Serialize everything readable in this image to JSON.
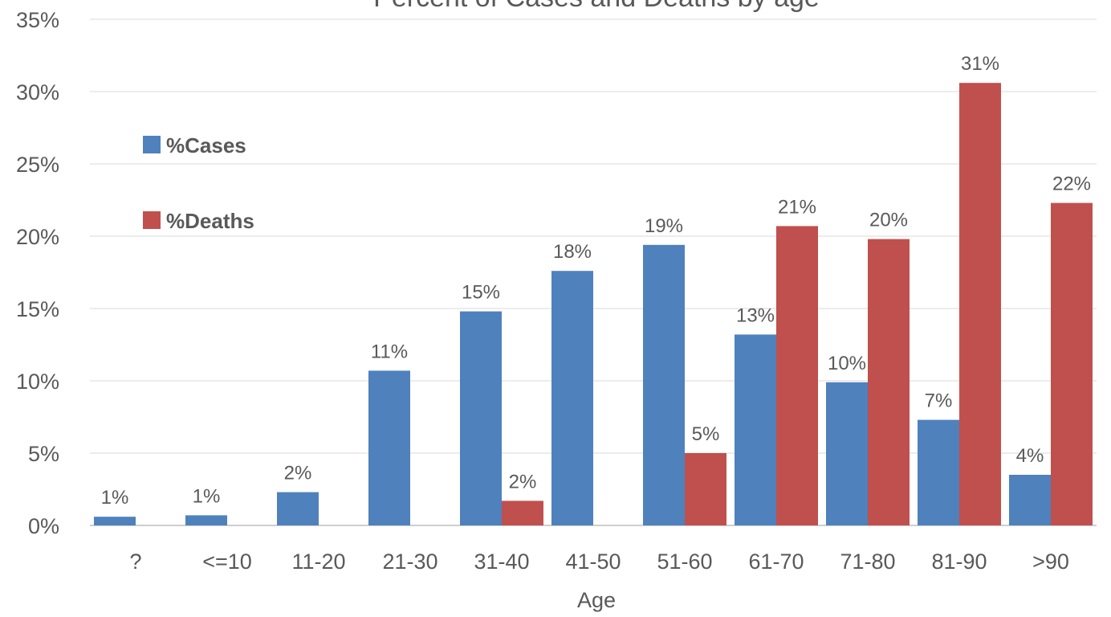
{
  "chart_data": {
    "type": "bar",
    "title": "Percent of Cases and Deaths by age",
    "xlabel": "Age",
    "ylabel": "",
    "ylim": [
      0,
      35
    ],
    "yticks": [
      "0%",
      "5%",
      "10%",
      "15%",
      "20%",
      "25%",
      "30%",
      "35%"
    ],
    "categories": [
      "?",
      "<=10",
      "11-20",
      "21-30",
      "31-40",
      "41-50",
      "51-60",
      "61-70",
      "71-80",
      "81-90",
      ">90"
    ],
    "series": [
      {
        "name": "%Cases",
        "color": "#4F81BD",
        "values": [
          0.6,
          0.7,
          2.3,
          10.7,
          14.8,
          17.6,
          19.4,
          13.2,
          9.9,
          7.3,
          3.5
        ],
        "labels": [
          "1%",
          "1%",
          "2%",
          "11%",
          "15%",
          "18%",
          "19%",
          "13%",
          "10%",
          "7%",
          "4%"
        ]
      },
      {
        "name": "%Deaths",
        "color": "#C0504D",
        "values": [
          0,
          0,
          0,
          0,
          1.7,
          0,
          5.0,
          20.7,
          19.8,
          30.6,
          22.3
        ],
        "labels": [
          "",
          "",
          "",
          "",
          "2%",
          "",
          "5%",
          "21%",
          "20%",
          "31%",
          "22%"
        ]
      }
    ],
    "grid": true,
    "legend_position": "left"
  }
}
